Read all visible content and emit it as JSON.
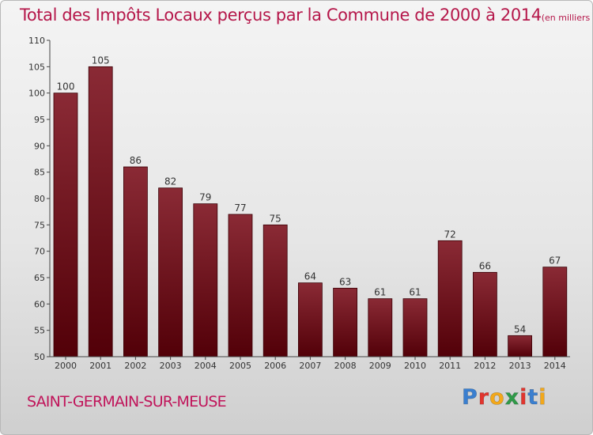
{
  "header": {
    "title": "Total des Impôts Locaux perçus par la Commune de 2000 à 2014",
    "unit": "(en milliers d'€)"
  },
  "commune": "SAINT-GERMAIN-SUR-MEUSE",
  "logo": {
    "text": "Proxiti",
    "colors": [
      "#3a7fd0",
      "#e2352e",
      "#f3a81a",
      "#2f9a48",
      "#e2352e",
      "#3a7fd0",
      "#f3a81a"
    ]
  },
  "colors": {
    "bar_top": "#8a2a35",
    "bar_bottom": "#520008",
    "title": "#b5174a",
    "commune": "#c0145a"
  },
  "chart_data": {
    "type": "bar",
    "title": "Total des Impôts Locaux perçus par la Commune de 2000 à 2014",
    "unit": "(en milliers d'€)",
    "categories": [
      "2000",
      "2001",
      "2002",
      "2003",
      "2004",
      "2005",
      "2006",
      "2007",
      "2008",
      "2009",
      "2010",
      "2011",
      "2012",
      "2013",
      "2014"
    ],
    "values": [
      100,
      105,
      86,
      82,
      79,
      77,
      75,
      64,
      63,
      61,
      61,
      72,
      66,
      54,
      67
    ],
    "ylim": [
      50,
      110
    ],
    "yticks": [
      50,
      55,
      60,
      65,
      70,
      75,
      80,
      85,
      90,
      95,
      100,
      105,
      110
    ],
    "grid": false,
    "legend": "none"
  }
}
